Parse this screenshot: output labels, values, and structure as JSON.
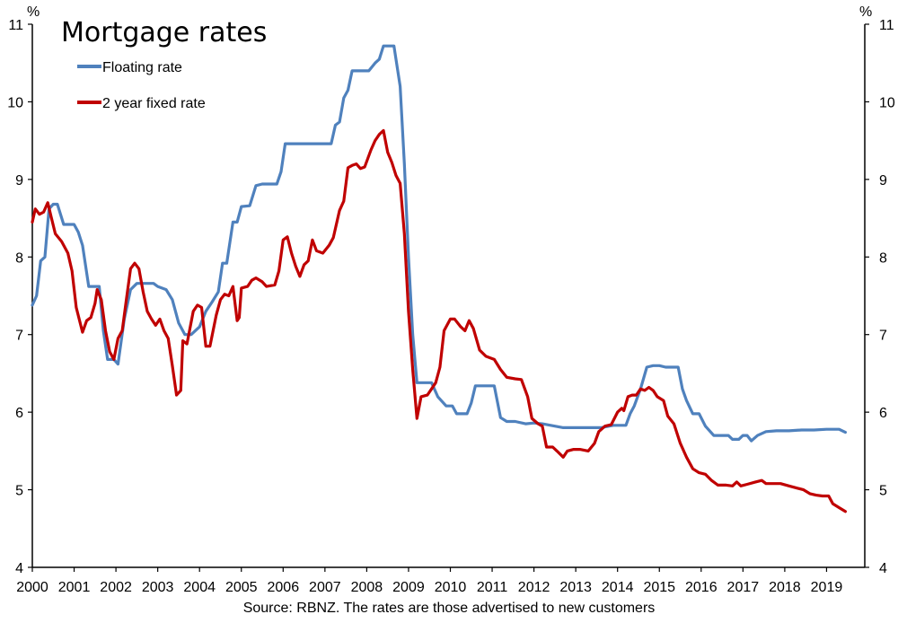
{
  "chart_data": {
    "type": "line",
    "title": "Mortgage rates",
    "xlabel": "",
    "ylabel_left": "%",
    "ylabel_right": "%",
    "source_note": "Source: RBNZ. The rates are those advertised to new customers",
    "ylim": [
      4,
      11
    ],
    "xlim": [
      2000,
      2019.5
    ],
    "y_ticks": [
      "4",
      "5",
      "6",
      "7",
      "8",
      "9",
      "10",
      "11"
    ],
    "x_ticks": [
      "2000",
      "2001",
      "2002",
      "2003",
      "2004",
      "2005",
      "2006",
      "2007",
      "2008",
      "2009",
      "2010",
      "2011",
      "2012",
      "2013",
      "2014",
      "2015",
      "2016",
      "2017",
      "2018",
      "2019"
    ],
    "grid": false,
    "legend_position": "top-left",
    "series": [
      {
        "name": "Floating rate",
        "color": "#4f81bd",
        "points": [
          [
            2000.0,
            7.38
          ],
          [
            2000.1,
            7.5
          ],
          [
            2000.2,
            7.95
          ],
          [
            2000.3,
            8.0
          ],
          [
            2000.4,
            8.62
          ],
          [
            2000.5,
            8.68
          ],
          [
            2000.6,
            8.68
          ],
          [
            2000.75,
            8.42
          ],
          [
            2000.9,
            8.42
          ],
          [
            2001.0,
            8.42
          ],
          [
            2001.1,
            8.32
          ],
          [
            2001.2,
            8.15
          ],
          [
            2001.35,
            7.62
          ],
          [
            2001.5,
            7.62
          ],
          [
            2001.6,
            7.62
          ],
          [
            2001.7,
            7.05
          ],
          [
            2001.8,
            6.68
          ],
          [
            2001.95,
            6.68
          ],
          [
            2002.05,
            6.62
          ],
          [
            2002.2,
            7.2
          ],
          [
            2002.35,
            7.58
          ],
          [
            2002.5,
            7.66
          ],
          [
            2002.7,
            7.66
          ],
          [
            2002.9,
            7.66
          ],
          [
            2003.0,
            7.62
          ],
          [
            2003.2,
            7.58
          ],
          [
            2003.35,
            7.45
          ],
          [
            2003.5,
            7.15
          ],
          [
            2003.65,
            7.0
          ],
          [
            2003.8,
            7.0
          ],
          [
            2004.0,
            7.1
          ],
          [
            2004.15,
            7.3
          ],
          [
            2004.3,
            7.42
          ],
          [
            2004.45,
            7.55
          ],
          [
            2004.55,
            7.92
          ],
          [
            2004.65,
            7.92
          ],
          [
            2004.8,
            8.45
          ],
          [
            2004.9,
            8.45
          ],
          [
            2005.0,
            8.65
          ],
          [
            2005.2,
            8.66
          ],
          [
            2005.35,
            8.92
          ],
          [
            2005.5,
            8.94
          ],
          [
            2005.7,
            8.94
          ],
          [
            2005.85,
            8.94
          ],
          [
            2005.95,
            9.1
          ],
          [
            2006.05,
            9.46
          ],
          [
            2006.3,
            9.46
          ],
          [
            2006.6,
            9.46
          ],
          [
            2006.9,
            9.46
          ],
          [
            2007.15,
            9.46
          ],
          [
            2007.25,
            9.7
          ],
          [
            2007.35,
            9.74
          ],
          [
            2007.45,
            10.05
          ],
          [
            2007.55,
            10.15
          ],
          [
            2007.65,
            10.4
          ],
          [
            2007.85,
            10.4
          ],
          [
            2008.05,
            10.4
          ],
          [
            2008.2,
            10.5
          ],
          [
            2008.3,
            10.55
          ],
          [
            2008.4,
            10.72
          ],
          [
            2008.55,
            10.72
          ],
          [
            2008.65,
            10.72
          ],
          [
            2008.8,
            10.2
          ],
          [
            2008.9,
            9.2
          ],
          [
            2009.0,
            8.0
          ],
          [
            2009.1,
            7.0
          ],
          [
            2009.2,
            6.38
          ],
          [
            2009.35,
            6.38
          ],
          [
            2009.55,
            6.38
          ],
          [
            2009.7,
            6.2
          ],
          [
            2009.9,
            6.08
          ],
          [
            2010.05,
            6.08
          ],
          [
            2010.15,
            5.98
          ],
          [
            2010.4,
            5.98
          ],
          [
            2010.5,
            6.12
          ],
          [
            2010.6,
            6.34
          ],
          [
            2010.85,
            6.34
          ],
          [
            2011.05,
            6.34
          ],
          [
            2011.2,
            5.93
          ],
          [
            2011.35,
            5.88
          ],
          [
            2011.55,
            5.88
          ],
          [
            2011.8,
            5.85
          ],
          [
            2012.0,
            5.86
          ],
          [
            2012.2,
            5.85
          ],
          [
            2012.4,
            5.83
          ],
          [
            2012.7,
            5.8
          ],
          [
            2013.0,
            5.8
          ],
          [
            2013.3,
            5.8
          ],
          [
            2013.6,
            5.8
          ],
          [
            2013.9,
            5.83
          ],
          [
            2014.1,
            5.83
          ],
          [
            2014.2,
            5.83
          ],
          [
            2014.3,
            5.98
          ],
          [
            2014.4,
            6.08
          ],
          [
            2014.55,
            6.3
          ],
          [
            2014.7,
            6.58
          ],
          [
            2014.85,
            6.6
          ],
          [
            2015.0,
            6.6
          ],
          [
            2015.15,
            6.58
          ],
          [
            2015.3,
            6.58
          ],
          [
            2015.45,
            6.58
          ],
          [
            2015.55,
            6.3
          ],
          [
            2015.65,
            6.15
          ],
          [
            2015.8,
            5.98
          ],
          [
            2015.95,
            5.98
          ],
          [
            2016.1,
            5.82
          ],
          [
            2016.3,
            5.7
          ],
          [
            2016.5,
            5.7
          ],
          [
            2016.65,
            5.7
          ],
          [
            2016.75,
            5.65
          ],
          [
            2016.9,
            5.65
          ],
          [
            2017.0,
            5.7
          ],
          [
            2017.1,
            5.7
          ],
          [
            2017.2,
            5.63
          ],
          [
            2017.35,
            5.7
          ],
          [
            2017.55,
            5.75
          ],
          [
            2017.8,
            5.76
          ],
          [
            2018.1,
            5.76
          ],
          [
            2018.4,
            5.77
          ],
          [
            2018.7,
            5.77
          ],
          [
            2019.0,
            5.78
          ],
          [
            2019.3,
            5.78
          ],
          [
            2019.45,
            5.74
          ]
        ]
      },
      {
        "name": "2 year fixed rate",
        "color": "#c00000",
        "points": [
          [
            2000.0,
            8.45
          ],
          [
            2000.07,
            8.62
          ],
          [
            2000.17,
            8.55
          ],
          [
            2000.27,
            8.58
          ],
          [
            2000.37,
            8.7
          ],
          [
            2000.45,
            8.52
          ],
          [
            2000.55,
            8.3
          ],
          [
            2000.7,
            8.2
          ],
          [
            2000.85,
            8.05
          ],
          [
            2000.95,
            7.82
          ],
          [
            2001.05,
            7.35
          ],
          [
            2001.2,
            7.03
          ],
          [
            2001.3,
            7.18
          ],
          [
            2001.4,
            7.22
          ],
          [
            2001.5,
            7.4
          ],
          [
            2001.55,
            7.58
          ],
          [
            2001.65,
            7.45
          ],
          [
            2001.75,
            7.05
          ],
          [
            2001.85,
            6.78
          ],
          [
            2001.95,
            6.68
          ],
          [
            2002.05,
            6.95
          ],
          [
            2002.15,
            7.05
          ],
          [
            2002.25,
            7.45
          ],
          [
            2002.35,
            7.85
          ],
          [
            2002.45,
            7.92
          ],
          [
            2002.55,
            7.85
          ],
          [
            2002.65,
            7.55
          ],
          [
            2002.75,
            7.3
          ],
          [
            2002.85,
            7.2
          ],
          [
            2002.95,
            7.12
          ],
          [
            2003.05,
            7.2
          ],
          [
            2003.15,
            7.05
          ],
          [
            2003.25,
            6.95
          ],
          [
            2003.35,
            6.6
          ],
          [
            2003.45,
            6.22
          ],
          [
            2003.55,
            6.28
          ],
          [
            2003.6,
            6.92
          ],
          [
            2003.7,
            6.88
          ],
          [
            2003.85,
            7.3
          ],
          [
            2003.95,
            7.38
          ],
          [
            2004.05,
            7.35
          ],
          [
            2004.15,
            6.85
          ],
          [
            2004.25,
            6.85
          ],
          [
            2004.4,
            7.25
          ],
          [
            2004.5,
            7.45
          ],
          [
            2004.6,
            7.52
          ],
          [
            2004.7,
            7.5
          ],
          [
            2004.8,
            7.62
          ],
          [
            2004.9,
            7.18
          ],
          [
            2004.95,
            7.22
          ],
          [
            2005.0,
            7.6
          ],
          [
            2005.15,
            7.62
          ],
          [
            2005.25,
            7.7
          ],
          [
            2005.35,
            7.73
          ],
          [
            2005.5,
            7.68
          ],
          [
            2005.6,
            7.62
          ],
          [
            2005.8,
            7.64
          ],
          [
            2005.9,
            7.82
          ],
          [
            2006.0,
            8.22
          ],
          [
            2006.1,
            8.26
          ],
          [
            2006.2,
            8.05
          ],
          [
            2006.3,
            7.88
          ],
          [
            2006.4,
            7.75
          ],
          [
            2006.5,
            7.9
          ],
          [
            2006.6,
            7.95
          ],
          [
            2006.7,
            8.22
          ],
          [
            2006.8,
            8.08
          ],
          [
            2006.95,
            8.05
          ],
          [
            2007.1,
            8.15
          ],
          [
            2007.2,
            8.25
          ],
          [
            2007.35,
            8.6
          ],
          [
            2007.45,
            8.72
          ],
          [
            2007.55,
            9.15
          ],
          [
            2007.65,
            9.18
          ],
          [
            2007.75,
            9.2
          ],
          [
            2007.85,
            9.14
          ],
          [
            2007.95,
            9.16
          ],
          [
            2008.1,
            9.38
          ],
          [
            2008.2,
            9.5
          ],
          [
            2008.3,
            9.58
          ],
          [
            2008.4,
            9.63
          ],
          [
            2008.5,
            9.35
          ],
          [
            2008.6,
            9.22
          ],
          [
            2008.7,
            9.05
          ],
          [
            2008.8,
            8.95
          ],
          [
            2008.9,
            8.3
          ],
          [
            2009.0,
            7.3
          ],
          [
            2009.1,
            6.55
          ],
          [
            2009.2,
            5.92
          ],
          [
            2009.3,
            6.2
          ],
          [
            2009.45,
            6.22
          ],
          [
            2009.55,
            6.3
          ],
          [
            2009.65,
            6.38
          ],
          [
            2009.75,
            6.58
          ],
          [
            2009.85,
            7.05
          ],
          [
            2010.0,
            7.2
          ],
          [
            2010.1,
            7.2
          ],
          [
            2010.25,
            7.1
          ],
          [
            2010.35,
            7.05
          ],
          [
            2010.45,
            7.18
          ],
          [
            2010.55,
            7.08
          ],
          [
            2010.7,
            6.8
          ],
          [
            2010.85,
            6.72
          ],
          [
            2010.95,
            6.7
          ],
          [
            2011.05,
            6.68
          ],
          [
            2011.2,
            6.55
          ],
          [
            2011.35,
            6.45
          ],
          [
            2011.55,
            6.43
          ],
          [
            2011.7,
            6.42
          ],
          [
            2011.85,
            6.2
          ],
          [
            2011.95,
            5.92
          ],
          [
            2012.1,
            5.85
          ],
          [
            2012.2,
            5.82
          ],
          [
            2012.3,
            5.55
          ],
          [
            2012.45,
            5.55
          ],
          [
            2012.55,
            5.5
          ],
          [
            2012.7,
            5.42
          ],
          [
            2012.8,
            5.5
          ],
          [
            2012.95,
            5.52
          ],
          [
            2013.1,
            5.52
          ],
          [
            2013.3,
            5.5
          ],
          [
            2013.45,
            5.6
          ],
          [
            2013.55,
            5.75
          ],
          [
            2013.7,
            5.82
          ],
          [
            2013.85,
            5.84
          ],
          [
            2014.0,
            6.0
          ],
          [
            2014.1,
            6.05
          ],
          [
            2014.15,
            6.02
          ],
          [
            2014.25,
            6.2
          ],
          [
            2014.35,
            6.22
          ],
          [
            2014.45,
            6.22
          ],
          [
            2014.55,
            6.3
          ],
          [
            2014.65,
            6.28
          ],
          [
            2014.75,
            6.32
          ],
          [
            2014.85,
            6.28
          ],
          [
            2014.95,
            6.2
          ],
          [
            2015.1,
            6.15
          ],
          [
            2015.2,
            5.95
          ],
          [
            2015.35,
            5.85
          ],
          [
            2015.5,
            5.6
          ],
          [
            2015.65,
            5.42
          ],
          [
            2015.8,
            5.27
          ],
          [
            2015.95,
            5.22
          ],
          [
            2016.1,
            5.2
          ],
          [
            2016.25,
            5.12
          ],
          [
            2016.4,
            5.06
          ],
          [
            2016.6,
            5.06
          ],
          [
            2016.75,
            5.05
          ],
          [
            2016.85,
            5.1
          ],
          [
            2016.95,
            5.05
          ],
          [
            2017.1,
            5.07
          ],
          [
            2017.3,
            5.1
          ],
          [
            2017.45,
            5.12
          ],
          [
            2017.55,
            5.08
          ],
          [
            2017.7,
            5.08
          ],
          [
            2017.9,
            5.08
          ],
          [
            2018.1,
            5.05
          ],
          [
            2018.3,
            5.02
          ],
          [
            2018.45,
            5.0
          ],
          [
            2018.6,
            4.95
          ],
          [
            2018.75,
            4.93
          ],
          [
            2018.9,
            4.92
          ],
          [
            2019.05,
            4.92
          ],
          [
            2019.15,
            4.82
          ],
          [
            2019.3,
            4.77
          ],
          [
            2019.45,
            4.72
          ]
        ]
      }
    ]
  }
}
